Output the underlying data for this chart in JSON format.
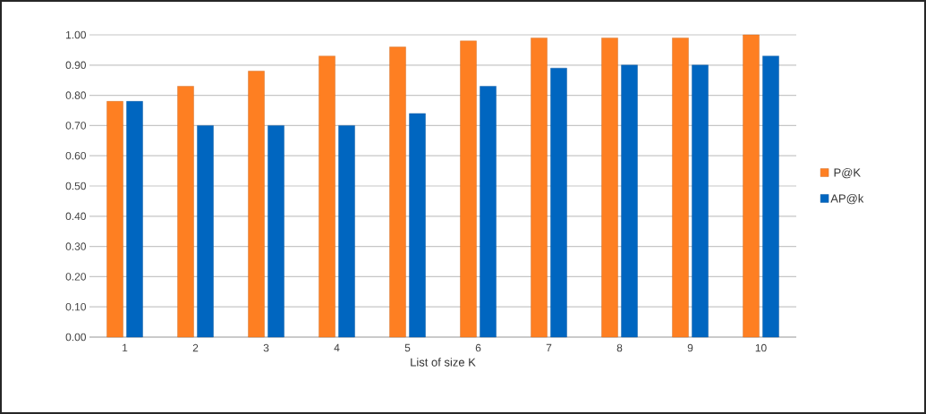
{
  "chart_data": {
    "type": "bar",
    "xlabel": "List of size K",
    "categories": [
      "1",
      "2",
      "3",
      "4",
      "5",
      "6",
      "7",
      "8",
      "9",
      "10"
    ],
    "series": [
      {
        "name": "P@K",
        "color": "#fe7f22",
        "values": [
          0.78,
          0.83,
          0.88,
          0.93,
          0.96,
          0.98,
          0.99,
          0.99,
          0.99,
          1.0
        ]
      },
      {
        "name": "AP@k",
        "color": "#0066c0",
        "values": [
          0.78,
          0.7,
          0.7,
          0.7,
          0.74,
          0.83,
          0.89,
          0.9,
          0.9,
          0.93
        ]
      }
    ],
    "ylim": [
      0,
      1.0
    ],
    "yticks": [
      {
        "value": 0,
        "label": "0.00"
      },
      {
        "value": 0.1,
        "label": "0.10"
      },
      {
        "value": 0.2,
        "label": "0.20"
      },
      {
        "value": 0.3,
        "label": "0.30"
      },
      {
        "value": 0.4,
        "label": "0.40"
      },
      {
        "value": 0.5,
        "label": "0.50"
      },
      {
        "value": 0.6,
        "label": "0.60"
      },
      {
        "value": 0.7,
        "label": "0.70"
      },
      {
        "value": 0.8,
        "label": "0.80"
      },
      {
        "value": 0.9,
        "label": "0.90"
      },
      {
        "value": 1.0,
        "label": "1.00"
      }
    ],
    "grid": "y",
    "legend": "right"
  }
}
